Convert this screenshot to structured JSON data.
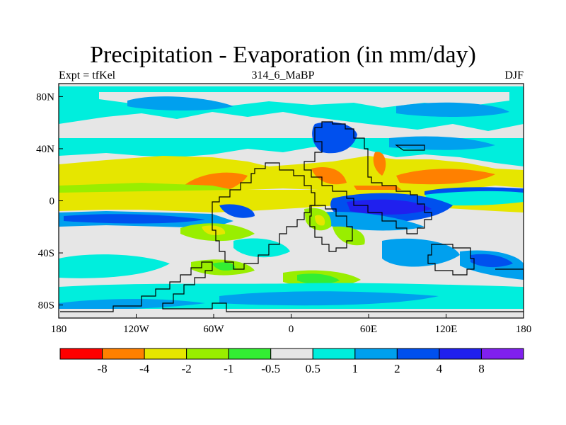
{
  "title": "Precipitation - Evaporation (in mm/day)",
  "subtitle_left": "Expt = tfKel",
  "subtitle_center": "314_6_MaBP",
  "subtitle_right": "DJF",
  "map": {
    "projection": "cylindrical-equidistant",
    "lon_range": [
      -180,
      180
    ],
    "lat_range": [
      -90,
      90
    ],
    "x_ticks": [
      {
        "value": -180,
        "label": "180"
      },
      {
        "value": -120,
        "label": "120W"
      },
      {
        "value": -60,
        "label": "60W"
      },
      {
        "value": 0,
        "label": "0"
      },
      {
        "value": 60,
        "label": "60E"
      },
      {
        "value": 120,
        "label": "120E"
      },
      {
        "value": 180,
        "label": "180"
      }
    ],
    "y_ticks": [
      {
        "value": 80,
        "label": "80N"
      },
      {
        "value": 40,
        "label": "40N"
      },
      {
        "value": 0,
        "label": "0"
      },
      {
        "value": -40,
        "label": "40S"
      },
      {
        "value": -80,
        "label": "80S"
      }
    ]
  },
  "colorbar": {
    "colors": [
      "#ff0000",
      "#ff8000",
      "#e6e600",
      "#99ee00",
      "#33ee33",
      "#e6e6e6",
      "#00eedd",
      "#00a0ee",
      "#0050ee",
      "#2020ee",
      "#8020ee"
    ],
    "labels": [
      "-8",
      "-4",
      "-2",
      "-1",
      "-0.5",
      "0.5",
      "1",
      "2",
      "4",
      "8"
    ]
  },
  "fields": {
    "background": "#e6e6e6",
    "coast": "#000000"
  }
}
